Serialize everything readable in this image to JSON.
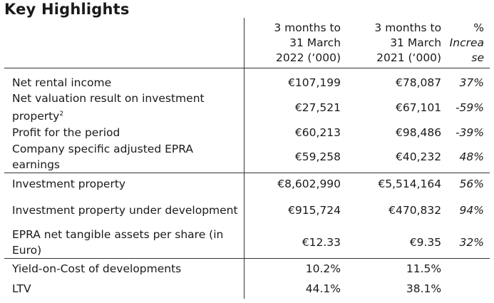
{
  "title": "Key Highlights",
  "headers": {
    "col1": [
      "3 months to",
      "31 March",
      "2022 (‘000)"
    ],
    "col2": [
      "3 months to",
      "31 March",
      "2021 (‘000)"
    ],
    "col3": [
      "%",
      "Increa",
      "se"
    ]
  },
  "rows": [
    {
      "label": "Net rental income",
      "v2022": "€107,199",
      "v2021": "€78,087",
      "pct": "37%"
    },
    {
      "label": "Net valuation result on investment property",
      "sup": "2",
      "v2022": "€27,521",
      "v2021": "€67,101",
      "pct": "-59%"
    },
    {
      "label": "Profit for the period",
      "v2022": "€60,213",
      "v2021": "€98,486",
      "pct": "-39%"
    },
    {
      "label": "Company specific adjusted EPRA earnings",
      "v2022": "€59,258",
      "v2021": "€40,232",
      "pct": "48%"
    },
    {
      "label": "Investment property",
      "v2022": "€8,602,990",
      "v2021": "€5,514,164",
      "pct": "56%"
    },
    {
      "label": "Investment property under development",
      "v2022": "€915,724",
      "v2021": "€470,832",
      "pct": "94%"
    },
    {
      "label": "EPRA net tangible assets per share (in Euro)",
      "v2022": "€12.33",
      "v2021": "€9.35",
      "pct": "32%"
    },
    {
      "label": "Yield-on-Cost of developments",
      "v2022": "10.2%",
      "v2021": "11.5%",
      "pct": ""
    },
    {
      "label": "LTV",
      "v2022": "44.1%",
      "v2021": "38.1%",
      "pct": ""
    }
  ]
}
